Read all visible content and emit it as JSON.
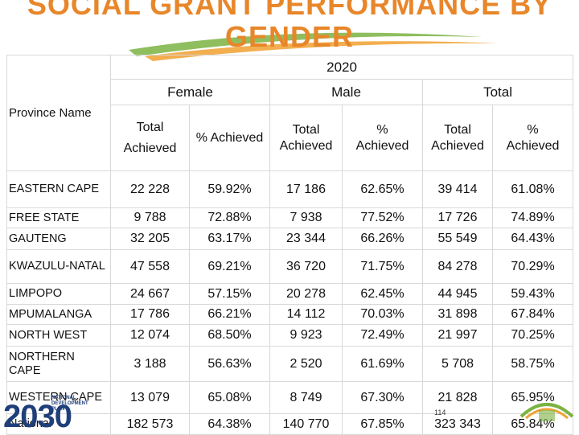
{
  "header": {
    "title": "SOCIAL GRANT PERFORMANCE BY GENDER"
  },
  "table": {
    "year": "2020",
    "groups": [
      "Female",
      "Male",
      "Total"
    ],
    "columns": [
      "Province Name",
      "Total Achieved",
      "% Achieved",
      "Total Achieved",
      "% Achieved",
      "Total Achieved",
      "% Achieved"
    ],
    "rows": [
      [
        "EASTERN CAPE",
        "22 228",
        "59.92%",
        "17 186",
        "62.65%",
        "39 414",
        "61.08%"
      ],
      [
        "FREE STATE",
        "9 788",
        "72.88%",
        "7 938",
        "77.52%",
        "17 726",
        "74.89%"
      ],
      [
        "GAUTENG",
        "32 205",
        "63.17%",
        "23 344",
        "66.26%",
        "55 549",
        "64.43%"
      ],
      [
        "KWAZULU-NATAL",
        "47 558",
        "69.21%",
        "36 720",
        "71.75%",
        "84 278",
        "70.29%"
      ],
      [
        "LIMPOPO",
        "24 667",
        "57.15%",
        "20 278",
        "62.45%",
        "44 945",
        "59.43%"
      ],
      [
        "MPUMALANGA",
        "17 786",
        "66.21%",
        "14 112",
        "70.03%",
        "31 898",
        "67.84%"
      ],
      [
        "NORTH WEST",
        "12 074",
        "68.50%",
        "9 923",
        "72.49%",
        "21 997",
        "70.25%"
      ],
      [
        "NORTHERN CAPE",
        "3 188",
        "56.63%",
        "2 520",
        "61.69%",
        "5 708",
        "58.75%"
      ],
      [
        "WESTERN CAPE",
        "13 079",
        "65.08%",
        "8 749",
        "67.30%",
        "21 828",
        "65.95%"
      ],
      [
        "National",
        "182 573",
        "64.38%",
        "140 770",
        "67.85%",
        "323 343",
        "65.84%"
      ]
    ]
  },
  "footer": {
    "logo_number": "2030",
    "logo_text": "NATIONAL DEVELOPMENT PLAN",
    "page_number": "114"
  }
}
